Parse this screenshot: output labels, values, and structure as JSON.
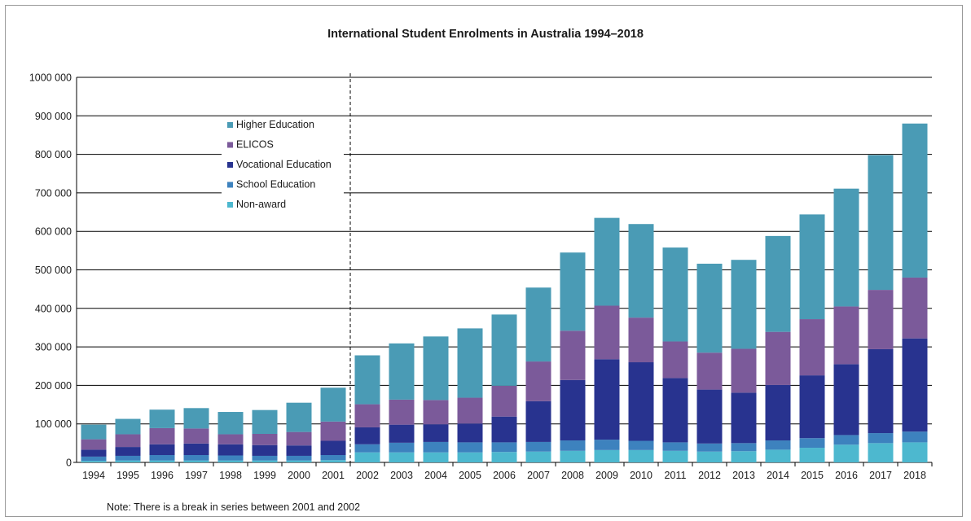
{
  "chart_data": {
    "type": "bar",
    "stacked": true,
    "title": "International Student Enrolments in Australia 1994–2018",
    "note": "Note: There is a break in series between 2001 and 2002",
    "categories": [
      "1994",
      "1995",
      "1996",
      "1997",
      "1998",
      "1999",
      "2000",
      "2001",
      "2002",
      "2003",
      "2004",
      "2005",
      "2006",
      "2007",
      "2008",
      "2009",
      "2010",
      "2011",
      "2012",
      "2013",
      "2014",
      "2015",
      "2016",
      "2017",
      "2018"
    ],
    "series": [
      {
        "name": "Non-award",
        "color": "#4db8cf",
        "values": [
          4000,
          5000,
          5000,
          5000,
          5000,
          5000,
          5000,
          6000,
          26000,
          26000,
          26000,
          26000,
          27000,
          28000,
          30000,
          32000,
          32000,
          30000,
          28000,
          29000,
          33000,
          38000,
          46000,
          50000,
          52000
        ]
      },
      {
        "name": "School Education",
        "color": "#3d82be",
        "values": [
          11000,
          12000,
          14000,
          14000,
          13000,
          12000,
          12000,
          13000,
          21000,
          25000,
          27000,
          26000,
          25000,
          25000,
          27000,
          27000,
          24000,
          22000,
          21000,
          21000,
          24000,
          25000,
          25000,
          26000,
          28000
        ]
      },
      {
        "name": "Vocational Education",
        "color": "#28338f",
        "values": [
          18000,
          23000,
          28000,
          30000,
          29000,
          28000,
          27000,
          37000,
          44000,
          47000,
          46000,
          49000,
          67000,
          106000,
          157000,
          209000,
          204000,
          167000,
          140000,
          131000,
          144000,
          163000,
          184000,
          218000,
          242000
        ]
      },
      {
        "name": "ELICOS",
        "color": "#7b5a9a",
        "values": [
          27000,
          33000,
          42000,
          39000,
          26000,
          29000,
          35000,
          50000,
          60000,
          65000,
          63000,
          67000,
          80000,
          103000,
          128000,
          139000,
          116000,
          95000,
          96000,
          114000,
          138000,
          146000,
          150000,
          154000,
          158000
        ]
      },
      {
        "name": "Higher Education",
        "color": "#4a9bb5",
        "values": [
          38000,
          40000,
          48000,
          53000,
          58000,
          62000,
          76000,
          88000,
          127000,
          146000,
          165000,
          180000,
          185000,
          192000,
          203000,
          228000,
          243000,
          244000,
          231000,
          231000,
          249000,
          272000,
          306000,
          350000,
          400000
        ]
      }
    ],
    "legend_order": [
      "Higher Education",
      "ELICOS",
      "Vocational Education",
      "School Education",
      "Non-award"
    ],
    "ylim": [
      0,
      1000000
    ],
    "yticks": [
      0,
      100000,
      200000,
      300000,
      400000,
      500000,
      600000,
      700000,
      800000,
      900000,
      1000000
    ],
    "ytick_labels": [
      "0",
      "100 000",
      "200 000",
      "300 000",
      "400 000",
      "500 000",
      "600 000",
      "700 000",
      "800 000",
      "900 000",
      "1000 000"
    ],
    "break_after": "2001",
    "grid": true,
    "legend_position": "top-left"
  }
}
